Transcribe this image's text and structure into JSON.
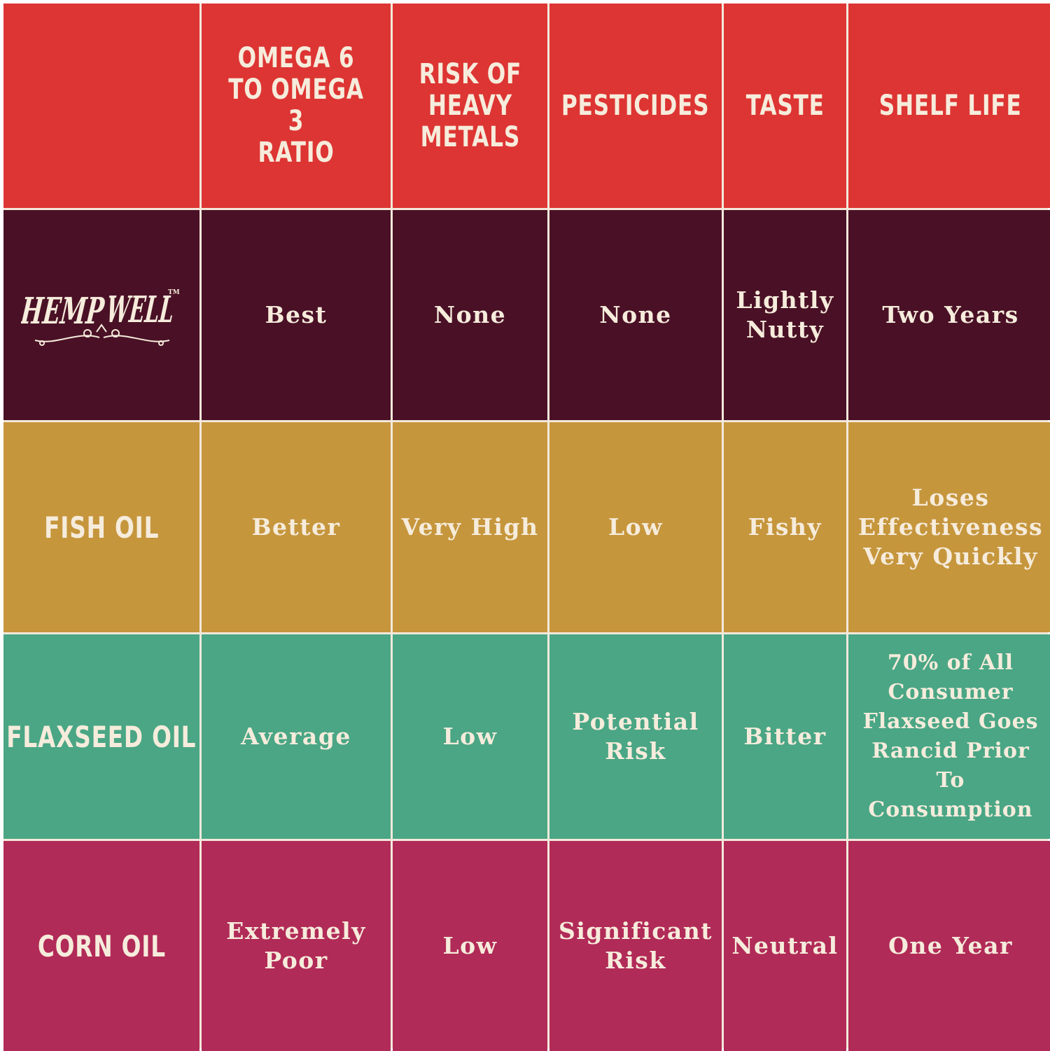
{
  "chart_data": {
    "type": "table",
    "columns": [
      "",
      "OMEGA 6\nTO OMEGA 3\nRATIO",
      "RISK OF\nHEAVY\nMETALS",
      "PESTICIDES",
      "TASTE",
      "SHELF LIFE"
    ],
    "rows": [
      {
        "label": "HEMP WELL",
        "logo": true,
        "logo_mark": "TM",
        "color": "#4a1126",
        "values": [
          "Best",
          "None",
          "None",
          "Lightly\nNutty",
          "Two Years"
        ]
      },
      {
        "label": "FISH OIL",
        "color": "#c6963d",
        "values": [
          "Better",
          "Very High",
          "Low",
          "Fishy",
          "Loses\nEffectiveness\nVery Quickly"
        ]
      },
      {
        "label": "FLAXSEED OIL",
        "color": "#4aa685",
        "values": [
          "Average",
          "Low",
          "Potential\nRisk",
          "Bitter",
          "70% of All\nConsumer\nFlaxseed Goes\nRancid Prior\nTo\nConsumption"
        ]
      },
      {
        "label": "CORN OIL",
        "color": "#b12b58",
        "values": [
          "Extremely\nPoor",
          "Low",
          "Significant\nRisk",
          "Neutral",
          "One Year"
        ]
      }
    ],
    "header_color": "#dd3533",
    "text_color": "#f6ecdc",
    "grid_line_color": "#f3e9dc"
  }
}
